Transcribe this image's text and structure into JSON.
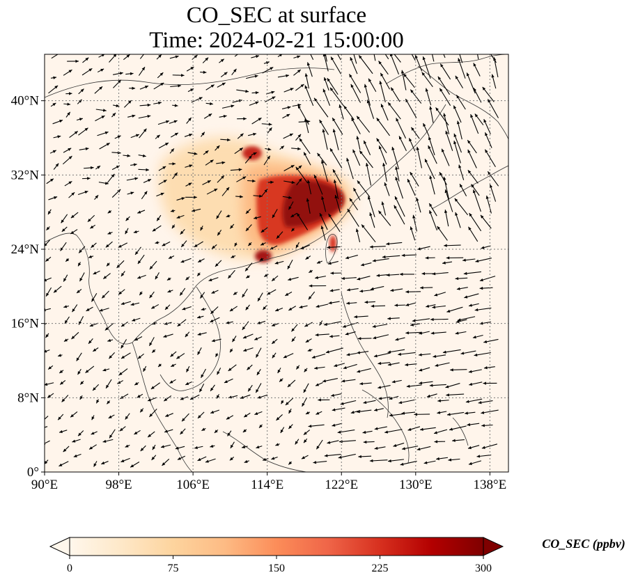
{
  "title": {
    "line1": "CO_SEC at surface",
    "line2": "Time: 2024-02-21 15:00:00"
  },
  "map": {
    "lon_range": [
      90,
      140
    ],
    "lat_range": [
      0,
      45
    ],
    "x_ticks": [
      {
        "value": 90,
        "label": "90°E"
      },
      {
        "value": 98,
        "label": "98°E"
      },
      {
        "value": 106,
        "label": "106°E"
      },
      {
        "value": 114,
        "label": "114°E"
      },
      {
        "value": 122,
        "label": "122°E"
      },
      {
        "value": 130,
        "label": "130°E"
      },
      {
        "value": 138,
        "label": "138°E"
      }
    ],
    "y_ticks": [
      {
        "value": 0,
        "label": "0°"
      },
      {
        "value": 8,
        "label": "8°N"
      },
      {
        "value": 16,
        "label": "16°N"
      },
      {
        "value": 24,
        "label": "24°N"
      },
      {
        "value": 32,
        "label": "32°N"
      },
      {
        "value": 40,
        "label": "40°N"
      }
    ],
    "gridlines": "dotted",
    "background_color": "#fff5eb",
    "vectors": "wind"
  },
  "colorbar": {
    "min": 0,
    "max": 300,
    "extend": "both",
    "colormap": "OrRd",
    "colors": [
      "#fff7ec",
      "#fee8c8",
      "#fdd49e",
      "#fdbb84",
      "#fc8d59",
      "#ef6548",
      "#d7301f",
      "#b30000",
      "#7f0000"
    ],
    "ticks": [
      {
        "value": 0,
        "label": "0"
      },
      {
        "value": 75,
        "label": "75"
      },
      {
        "value": 150,
        "label": "150"
      },
      {
        "value": 225,
        "label": "225"
      },
      {
        "value": 300,
        "label": "300"
      }
    ],
    "label": "CO_SEC (ppbv)"
  }
}
